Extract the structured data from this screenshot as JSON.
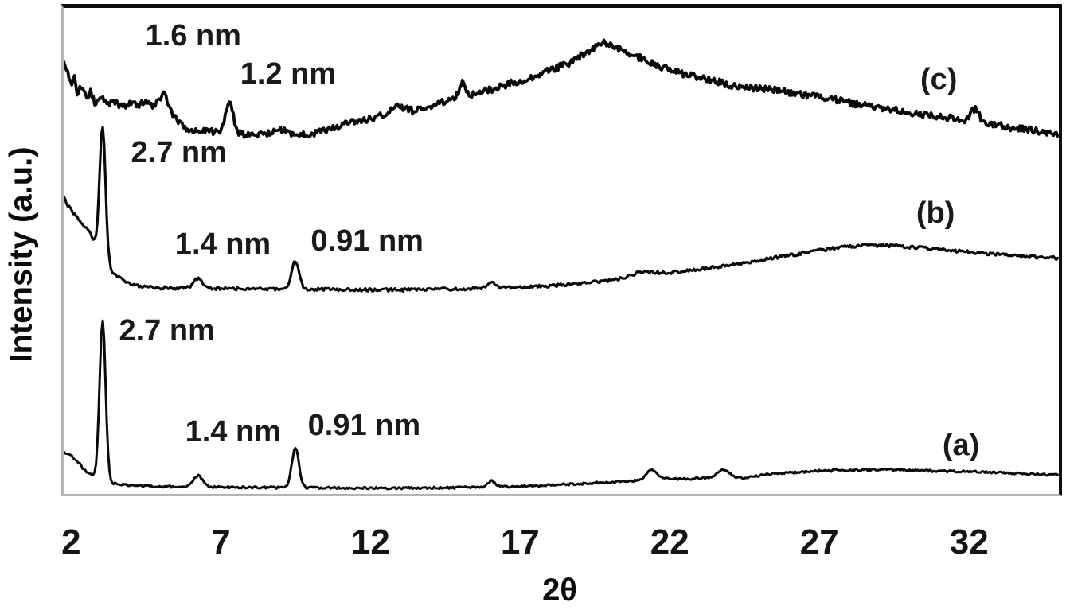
{
  "figure": {
    "ylabel": "Intensity (a.u.)",
    "xlabel": "2θ"
  },
  "chart_data": {
    "type": "line",
    "title": "",
    "xlabel": "2θ",
    "ylabel": "Intensity (a.u.)",
    "xlim": [
      1.75,
      35
    ],
    "ylim": [
      0,
      100
    ],
    "x_ticks": [
      2,
      7,
      12,
      17,
      22,
      27,
      32
    ],
    "grid": false,
    "legend_position": "none",
    "line_color": "#0a0a0a",
    "y_units": "arbitrary (a.u.), normalized 0-100 of plot height",
    "series": [
      {
        "name": "(a)",
        "line_width": 3,
        "noise_amp": 0.22,
        "seed": 3,
        "peaks": [
          {
            "x": 3.05,
            "h": 33,
            "w": 0.1,
            "d_spacing": "2.7 nm"
          },
          {
            "x": 6.24,
            "h": 2.3,
            "w": 0.15,
            "d_spacing": "1.4 nm"
          },
          {
            "x": 9.49,
            "h": 8.0,
            "w": 0.12,
            "d_spacing": "0.91 nm"
          },
          {
            "x": 16.05,
            "h": 1.3,
            "w": 0.12
          },
          {
            "x": 21.4,
            "h": 2.0,
            "w": 0.18
          },
          {
            "x": 23.8,
            "h": 1.7,
            "w": 0.18
          }
        ],
        "anchors": [
          [
            1.75,
            8.7
          ],
          [
            1.85,
            8.1
          ],
          [
            1.95,
            8.4
          ],
          [
            2.1,
            7.2
          ],
          [
            2.25,
            6.4
          ],
          [
            2.4,
            5.2
          ],
          [
            2.55,
            4.4
          ],
          [
            2.7,
            3.7
          ],
          [
            2.9,
            3.0
          ],
          [
            3.1,
            2.7
          ],
          [
            3.4,
            2.2
          ],
          [
            3.7,
            1.9
          ],
          [
            4.1,
            1.7
          ],
          [
            4.6,
            1.6
          ],
          [
            5.2,
            1.5
          ],
          [
            6,
            1.45
          ],
          [
            7,
            1.4
          ],
          [
            8,
            1.35
          ],
          [
            9,
            1.3
          ],
          [
            10,
            1.3
          ],
          [
            11,
            1.25
          ],
          [
            12,
            1.2
          ],
          [
            13,
            1.2
          ],
          [
            14,
            1.25
          ],
          [
            15,
            1.3
          ],
          [
            16,
            1.4
          ],
          [
            17,
            1.6
          ],
          [
            18,
            1.8
          ],
          [
            19,
            2.1
          ],
          [
            20,
            2.4
          ],
          [
            21,
            2.8
          ],
          [
            21.9,
            3.1
          ],
          [
            22.6,
            3.1
          ],
          [
            23.2,
            3.3
          ],
          [
            24.1,
            3.4
          ],
          [
            24.5,
            3.2
          ],
          [
            25.2,
            4.0
          ],
          [
            26,
            4.4
          ],
          [
            27,
            4.7
          ],
          [
            28,
            4.9
          ],
          [
            29,
            5.0
          ],
          [
            30,
            4.9
          ],
          [
            31,
            4.7
          ],
          [
            32,
            4.6
          ],
          [
            33,
            4.4
          ],
          [
            34,
            4.1
          ],
          [
            35,
            3.9
          ]
        ]
      },
      {
        "name": "(b)",
        "line_width": 3.2,
        "noise_amp": 0.32,
        "seed": 7,
        "peaks": [
          {
            "x": 3.05,
            "h": 28,
            "w": 0.1,
            "d_spacing": "2.7 nm"
          },
          {
            "x": 6.24,
            "h": 2.0,
            "w": 0.15,
            "d_spacing": "1.4 nm"
          },
          {
            "x": 9.49,
            "h": 5.8,
            "w": 0.12,
            "d_spacing": "0.91 nm"
          },
          {
            "x": 16.05,
            "h": 1.1,
            "w": 0.12
          },
          {
            "x": 21.0,
            "h": 0.7,
            "w": 0.3
          }
        ],
        "anchors": [
          [
            1.75,
            61.4
          ],
          [
            1.85,
            59.5
          ],
          [
            1.95,
            58.8
          ],
          [
            2.1,
            57.5
          ],
          [
            2.25,
            56.6
          ],
          [
            2.4,
            55.3
          ],
          [
            2.55,
            54.6
          ],
          [
            2.7,
            52.8
          ],
          [
            2.85,
            50.3
          ],
          [
            3.0,
            48.2
          ],
          [
            3.2,
            46.6
          ],
          [
            3.45,
            45.2
          ],
          [
            3.7,
            44.1
          ],
          [
            3.95,
            43.3
          ],
          [
            4.3,
            42.7
          ],
          [
            5,
            42.4
          ],
          [
            6,
            42.3
          ],
          [
            7,
            42.25
          ],
          [
            8,
            42.2
          ],
          [
            9,
            42.15
          ],
          [
            10,
            42.1
          ],
          [
            11,
            42.05
          ],
          [
            12,
            42.0
          ],
          [
            13,
            42.0
          ],
          [
            14,
            42.1
          ],
          [
            15,
            42.2
          ],
          [
            16,
            42.35
          ],
          [
            17,
            42.55
          ],
          [
            18,
            42.85
          ],
          [
            19,
            43.3
          ],
          [
            20,
            43.9
          ],
          [
            20.7,
            44.6
          ],
          [
            21.3,
            45.3
          ],
          [
            21.9,
            45.5
          ],
          [
            22.5,
            45.9
          ],
          [
            23.2,
            46.4
          ],
          [
            24,
            47.1
          ],
          [
            25,
            48.1
          ],
          [
            26,
            49.1
          ],
          [
            27,
            50.1
          ],
          [
            27.8,
            50.8
          ],
          [
            28.7,
            51.2
          ],
          [
            29.6,
            51.0
          ],
          [
            30.5,
            50.6
          ],
          [
            31.4,
            50.1
          ],
          [
            32.3,
            49.6
          ],
          [
            33.2,
            49.1
          ],
          [
            34,
            48.8
          ],
          [
            35,
            48.5
          ]
        ]
      },
      {
        "name": "(c)",
        "line_width": 3.8,
        "noise_amp": 0.7,
        "seed": 11,
        "peaks": [
          {
            "x": 5.12,
            "h": 2.2,
            "w": 0.12,
            "d_spacing": "1.6 nm"
          },
          {
            "x": 7.28,
            "h": 6.3,
            "w": 0.13,
            "d_spacing": "1.2 nm"
          },
          {
            "x": 12.85,
            "h": 1.2,
            "w": 0.2
          },
          {
            "x": 15.07,
            "h": 3.2,
            "w": 0.1
          },
          {
            "x": 32.2,
            "h": 2.6,
            "w": 0.13
          }
        ],
        "anchors": [
          [
            1.75,
            89.4
          ],
          [
            1.85,
            87.0
          ],
          [
            2.0,
            84.5
          ],
          [
            2.1,
            86.0
          ],
          [
            2.2,
            82.5
          ],
          [
            2.35,
            84.0
          ],
          [
            2.5,
            81.5
          ],
          [
            2.65,
            82.7
          ],
          [
            2.8,
            80.5
          ],
          [
            3.0,
            81.6
          ],
          [
            3.2,
            79.8
          ],
          [
            3.45,
            80.8
          ],
          [
            3.7,
            79.5
          ],
          [
            3.95,
            80.5
          ],
          [
            4.2,
            79.8
          ],
          [
            4.45,
            80.7
          ],
          [
            4.7,
            79.9
          ],
          [
            4.9,
            80.6
          ],
          [
            5.05,
            80.2
          ],
          [
            5.35,
            78.5
          ],
          [
            5.6,
            76.3
          ],
          [
            5.9,
            75.1
          ],
          [
            6.3,
            74.8
          ],
          [
            6.8,
            74.6
          ],
          [
            7.1,
            74.4
          ],
          [
            7.6,
            74.0
          ],
          [
            8.1,
            73.8
          ],
          [
            8.6,
            74.3
          ],
          [
            8.9,
            75.2
          ],
          [
            9.2,
            74.6
          ],
          [
            9.6,
            73.8
          ],
          [
            10.0,
            74.0
          ],
          [
            10.5,
            74.8
          ],
          [
            11.0,
            75.8
          ],
          [
            11.5,
            76.6
          ],
          [
            12.0,
            77.3
          ],
          [
            12.5,
            78.0
          ],
          [
            13.1,
            79.0
          ],
          [
            13.5,
            78.8
          ],
          [
            14.0,
            79.8
          ],
          [
            14.5,
            80.7
          ],
          [
            15.0,
            81.6
          ],
          [
            15.5,
            82.3
          ],
          [
            16.0,
            83.2
          ],
          [
            16.6,
            84.3
          ],
          [
            17.2,
            85.4
          ],
          [
            17.9,
            86.9
          ],
          [
            18.6,
            88.5
          ],
          [
            19.2,
            90.8
          ],
          [
            19.8,
            92.8
          ],
          [
            20.2,
            92.0
          ],
          [
            20.8,
            90.3
          ],
          [
            21.5,
            88.4
          ],
          [
            22.3,
            86.7
          ],
          [
            23.2,
            85.3
          ],
          [
            24.1,
            84.1
          ],
          [
            25.1,
            83.3
          ],
          [
            26.1,
            82.6
          ],
          [
            27.1,
            81.6
          ],
          [
            28.1,
            80.4
          ],
          [
            29.1,
            79.3
          ],
          [
            30.1,
            78.4
          ],
          [
            31.0,
            77.6
          ],
          [
            31.8,
            77.0
          ],
          [
            32.6,
            76.3
          ],
          [
            33.4,
            75.4
          ],
          [
            34.2,
            74.7
          ],
          [
            35.0,
            74.1
          ]
        ]
      }
    ],
    "annotations": [
      {
        "text": "1.6 nm",
        "x": 6.08,
        "y": 94.3,
        "kind": "peak"
      },
      {
        "text": "1.2 nm",
        "x": 9.25,
        "y": 86.4,
        "kind": "peak"
      },
      {
        "text": "2.7 nm",
        "x": 5.6,
        "y": 70.2,
        "kind": "peak"
      },
      {
        "text": "1.4 nm",
        "x": 7.07,
        "y": 51.4,
        "kind": "peak"
      },
      {
        "text": "0.91 nm",
        "x": 11.89,
        "y": 52.0,
        "kind": "peak"
      },
      {
        "text": "2.7 nm",
        "x": 5.2,
        "y": 33.6,
        "kind": "peak"
      },
      {
        "text": "1.4 nm",
        "x": 7.41,
        "y": 12.8,
        "kind": "peak"
      },
      {
        "text": "0.91 nm",
        "x": 11.79,
        "y": 14.1,
        "kind": "peak"
      },
      {
        "text": "(c)",
        "x": 30.99,
        "y": 85.3,
        "kind": "series"
      },
      {
        "text": "(b)",
        "x": 30.88,
        "y": 57.8,
        "kind": "series"
      },
      {
        "text": "(a)",
        "x": 31.73,
        "y": 10.0,
        "kind": "series"
      }
    ]
  }
}
